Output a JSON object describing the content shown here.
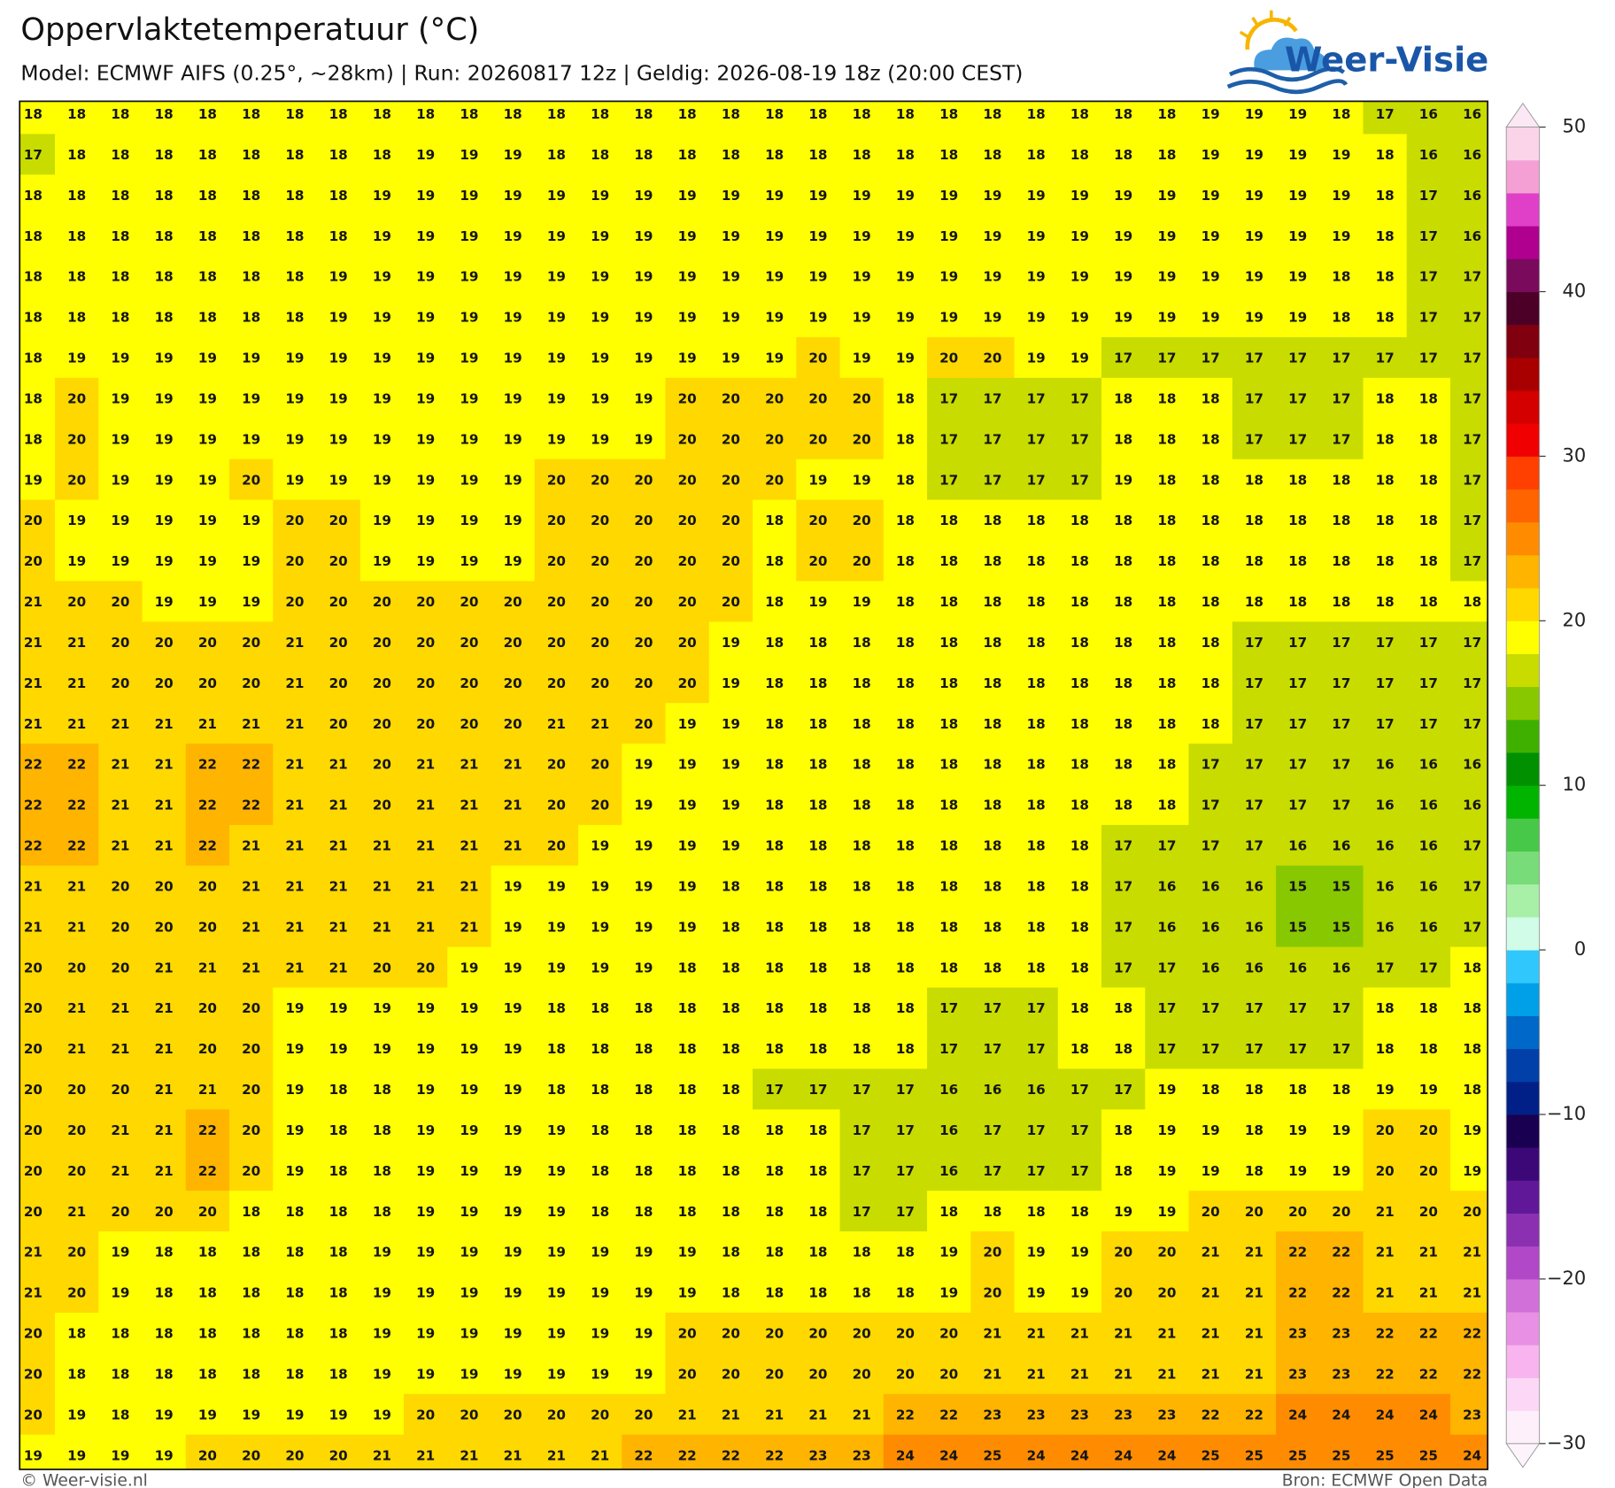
{
  "header": {
    "title": "Oppervlaktetemperatuur (°C)",
    "subtitle": "Model: ECMWF AIFS (0.25°, ~28km)  |  Run: 20260817 12z  |  Geldig: 2026-08-19 18z (20:00 CEST)"
  },
  "logo": {
    "text": "Weer-Visie"
  },
  "map": {
    "values": [
      [
        18,
        18,
        18,
        18,
        18,
        18,
        18,
        18,
        18,
        18,
        18,
        18,
        18,
        18,
        18,
        18,
        18,
        18,
        18,
        18,
        18,
        18,
        18,
        18,
        18,
        18,
        18,
        19,
        19,
        19,
        18,
        17,
        16,
        16
      ],
      [
        17,
        18,
        18,
        18,
        18,
        18,
        18,
        18,
        18,
        19,
        19,
        19,
        18,
        18,
        18,
        18,
        18,
        18,
        18,
        18,
        18,
        18,
        18,
        18,
        18,
        18,
        18,
        19,
        19,
        19,
        19,
        18,
        16,
        16
      ],
      [
        18,
        18,
        18,
        18,
        18,
        18,
        18,
        18,
        19,
        19,
        19,
        19,
        19,
        19,
        19,
        19,
        19,
        19,
        19,
        19,
        19,
        19,
        19,
        19,
        19,
        19,
        19,
        19,
        19,
        19,
        19,
        18,
        17,
        16
      ],
      [
        18,
        18,
        18,
        18,
        18,
        18,
        18,
        18,
        19,
        19,
        19,
        19,
        19,
        19,
        19,
        19,
        19,
        19,
        19,
        19,
        19,
        19,
        19,
        19,
        19,
        19,
        19,
        19,
        19,
        19,
        19,
        18,
        17,
        16
      ],
      [
        18,
        18,
        18,
        18,
        18,
        18,
        18,
        19,
        19,
        19,
        19,
        19,
        19,
        19,
        19,
        19,
        19,
        19,
        19,
        19,
        19,
        19,
        19,
        19,
        19,
        19,
        19,
        19,
        19,
        19,
        18,
        18,
        17,
        17
      ],
      [
        18,
        18,
        18,
        18,
        18,
        18,
        18,
        19,
        19,
        19,
        19,
        19,
        19,
        19,
        19,
        19,
        19,
        19,
        19,
        19,
        19,
        19,
        19,
        19,
        19,
        19,
        19,
        19,
        19,
        19,
        18,
        18,
        17,
        17
      ],
      [
        18,
        19,
        19,
        19,
        19,
        19,
        19,
        19,
        19,
        19,
        19,
        19,
        19,
        19,
        19,
        19,
        19,
        19,
        20,
        19,
        19,
        20,
        20,
        19,
        19,
        17,
        17,
        17,
        17,
        17,
        17,
        17,
        17,
        17
      ],
      [
        18,
        20,
        19,
        19,
        19,
        19,
        19,
        19,
        19,
        19,
        19,
        19,
        19,
        19,
        19,
        20,
        20,
        20,
        20,
        20,
        18,
        17,
        17,
        17,
        17,
        18,
        18,
        18,
        17,
        17,
        17,
        18,
        18,
        17
      ],
      [
        18,
        20,
        19,
        19,
        19,
        19,
        19,
        19,
        19,
        19,
        19,
        19,
        19,
        19,
        19,
        20,
        20,
        20,
        20,
        20,
        18,
        17,
        17,
        17,
        17,
        18,
        18,
        18,
        17,
        17,
        17,
        18,
        18,
        17
      ],
      [
        19,
        20,
        19,
        19,
        19,
        20,
        19,
        19,
        19,
        19,
        19,
        19,
        20,
        20,
        20,
        20,
        20,
        20,
        19,
        19,
        18,
        17,
        17,
        17,
        17,
        19,
        18,
        18,
        18,
        18,
        18,
        18,
        18,
        17
      ],
      [
        20,
        19,
        19,
        19,
        19,
        19,
        20,
        20,
        19,
        19,
        19,
        19,
        20,
        20,
        20,
        20,
        20,
        18,
        20,
        20,
        18,
        18,
        18,
        18,
        18,
        18,
        18,
        18,
        18,
        18,
        18,
        18,
        18,
        17
      ],
      [
        20,
        19,
        19,
        19,
        19,
        19,
        20,
        20,
        19,
        19,
        19,
        19,
        20,
        20,
        20,
        20,
        20,
        18,
        20,
        20,
        18,
        18,
        18,
        18,
        18,
        18,
        18,
        18,
        18,
        18,
        18,
        18,
        18,
        17
      ],
      [
        21,
        20,
        20,
        19,
        19,
        19,
        20,
        20,
        20,
        20,
        20,
        20,
        20,
        20,
        20,
        20,
        20,
        18,
        19,
        19,
        18,
        18,
        18,
        18,
        18,
        18,
        18,
        18,
        18,
        18,
        18,
        18,
        18,
        18
      ],
      [
        21,
        21,
        20,
        20,
        20,
        20,
        21,
        20,
        20,
        20,
        20,
        20,
        20,
        20,
        20,
        20,
        19,
        18,
        18,
        18,
        18,
        18,
        18,
        18,
        18,
        18,
        18,
        18,
        17,
        17,
        17,
        17,
        17,
        17
      ],
      [
        21,
        21,
        20,
        20,
        20,
        20,
        21,
        20,
        20,
        20,
        20,
        20,
        20,
        20,
        20,
        20,
        19,
        18,
        18,
        18,
        18,
        18,
        18,
        18,
        18,
        18,
        18,
        18,
        17,
        17,
        17,
        17,
        17,
        17
      ],
      [
        21,
        21,
        21,
        21,
        21,
        21,
        21,
        20,
        20,
        20,
        20,
        20,
        21,
        21,
        20,
        19,
        19,
        18,
        18,
        18,
        18,
        18,
        18,
        18,
        18,
        18,
        18,
        18,
        17,
        17,
        17,
        17,
        17,
        17
      ],
      [
        22,
        22,
        21,
        21,
        22,
        22,
        21,
        21,
        20,
        21,
        21,
        21,
        20,
        20,
        19,
        19,
        19,
        18,
        18,
        18,
        18,
        18,
        18,
        18,
        18,
        18,
        18,
        17,
        17,
        17,
        17,
        16,
        16,
        16
      ],
      [
        22,
        22,
        21,
        21,
        22,
        22,
        21,
        21,
        20,
        21,
        21,
        21,
        20,
        20,
        19,
        19,
        19,
        18,
        18,
        18,
        18,
        18,
        18,
        18,
        18,
        18,
        18,
        17,
        17,
        17,
        17,
        16,
        16,
        16
      ],
      [
        22,
        22,
        21,
        21,
        22,
        21,
        21,
        21,
        21,
        21,
        21,
        21,
        20,
        19,
        19,
        19,
        19,
        18,
        18,
        18,
        18,
        18,
        18,
        18,
        18,
        17,
        17,
        17,
        17,
        16,
        16,
        16,
        16,
        17
      ],
      [
        21,
        21,
        20,
        20,
        20,
        21,
        21,
        21,
        21,
        21,
        21,
        19,
        19,
        19,
        19,
        19,
        18,
        18,
        18,
        18,
        18,
        18,
        18,
        18,
        18,
        17,
        16,
        16,
        16,
        15,
        15,
        16,
        16,
        17
      ],
      [
        21,
        21,
        20,
        20,
        20,
        21,
        21,
        21,
        21,
        21,
        21,
        19,
        19,
        19,
        19,
        19,
        18,
        18,
        18,
        18,
        18,
        18,
        18,
        18,
        18,
        17,
        16,
        16,
        16,
        15,
        15,
        16,
        16,
        17
      ],
      [
        20,
        20,
        20,
        21,
        21,
        21,
        21,
        21,
        20,
        20,
        19,
        19,
        19,
        19,
        19,
        18,
        18,
        18,
        18,
        18,
        18,
        18,
        18,
        18,
        18,
        17,
        17,
        16,
        16,
        16,
        16,
        17,
        17,
        18
      ],
      [
        20,
        21,
        21,
        21,
        20,
        20,
        19,
        19,
        19,
        19,
        19,
        19,
        18,
        18,
        18,
        18,
        18,
        18,
        18,
        18,
        18,
        17,
        17,
        17,
        18,
        18,
        17,
        17,
        17,
        17,
        17,
        18,
        18,
        18
      ],
      [
        20,
        21,
        21,
        21,
        20,
        20,
        19,
        19,
        19,
        19,
        19,
        19,
        18,
        18,
        18,
        18,
        18,
        18,
        18,
        18,
        18,
        17,
        17,
        17,
        18,
        18,
        17,
        17,
        17,
        17,
        17,
        18,
        18,
        18
      ],
      [
        20,
        20,
        20,
        21,
        21,
        20,
        19,
        18,
        18,
        19,
        19,
        19,
        18,
        18,
        18,
        18,
        18,
        17,
        17,
        17,
        17,
        16,
        16,
        16,
        17,
        17,
        19,
        18,
        18,
        18,
        18,
        19,
        19,
        18
      ],
      [
        20,
        20,
        21,
        21,
        22,
        20,
        19,
        18,
        18,
        19,
        19,
        19,
        19,
        18,
        18,
        18,
        18,
        18,
        18,
        17,
        17,
        16,
        17,
        17,
        17,
        18,
        19,
        19,
        18,
        19,
        19,
        20,
        20,
        19
      ],
      [
        20,
        20,
        21,
        21,
        22,
        20,
        19,
        18,
        18,
        19,
        19,
        19,
        19,
        18,
        18,
        18,
        18,
        18,
        18,
        17,
        17,
        16,
        17,
        17,
        17,
        18,
        19,
        19,
        18,
        19,
        19,
        20,
        20,
        19
      ],
      [
        20,
        21,
        20,
        20,
        20,
        18,
        18,
        18,
        18,
        19,
        19,
        19,
        19,
        18,
        18,
        18,
        18,
        18,
        18,
        17,
        17,
        18,
        18,
        18,
        18,
        19,
        19,
        20,
        20,
        20,
        20,
        21,
        20,
        20
      ],
      [
        21,
        20,
        19,
        18,
        18,
        18,
        18,
        18,
        19,
        19,
        19,
        19,
        19,
        19,
        19,
        19,
        18,
        18,
        18,
        18,
        18,
        19,
        20,
        19,
        19,
        20,
        20,
        21,
        21,
        22,
        22,
        21,
        21,
        21
      ],
      [
        21,
        20,
        19,
        18,
        18,
        18,
        18,
        18,
        19,
        19,
        19,
        19,
        19,
        19,
        19,
        19,
        18,
        18,
        18,
        18,
        18,
        19,
        20,
        19,
        19,
        20,
        20,
        21,
        21,
        22,
        22,
        21,
        21,
        21
      ],
      [
        20,
        18,
        18,
        18,
        18,
        18,
        18,
        18,
        19,
        19,
        19,
        19,
        19,
        19,
        19,
        20,
        20,
        20,
        20,
        20,
        20,
        20,
        21,
        21,
        21,
        21,
        21,
        21,
        21,
        23,
        23,
        22,
        22,
        22
      ],
      [
        20,
        18,
        18,
        18,
        18,
        18,
        18,
        18,
        19,
        19,
        19,
        19,
        19,
        19,
        19,
        20,
        20,
        20,
        20,
        20,
        20,
        20,
        21,
        21,
        21,
        21,
        21,
        21,
        21,
        23,
        23,
        22,
        22,
        22
      ],
      [
        20,
        19,
        18,
        19,
        19,
        19,
        19,
        19,
        19,
        20,
        20,
        20,
        20,
        20,
        20,
        21,
        21,
        21,
        21,
        21,
        22,
        22,
        23,
        23,
        23,
        23,
        23,
        22,
        22,
        24,
        24,
        24,
        24,
        23
      ],
      [
        19,
        19,
        19,
        19,
        20,
        20,
        20,
        20,
        21,
        21,
        21,
        21,
        21,
        21,
        22,
        22,
        22,
        22,
        23,
        23,
        24,
        24,
        25,
        24,
        24,
        24,
        24,
        25,
        25,
        25,
        25,
        25,
        25,
        24
      ]
    ]
  },
  "colorbar": {
    "lim": [
      -30,
      50
    ],
    "ticks": [
      50,
      40,
      30,
      20,
      10,
      0,
      {
        "value": -10,
        "label": "−10"
      },
      {
        "value": -20,
        "label": "−20"
      },
      {
        "value": -30,
        "label": "−30"
      }
    ],
    "colors": [
      "#fdf0fa",
      "#fcd8f6",
      "#f8b4ee",
      "#e890e4",
      "#d070d8",
      "#b048c8",
      "#8a30b0",
      "#601898",
      "#3c0878",
      "#1a0050",
      "#002088",
      "#0040a8",
      "#0068c8",
      "#00a0e8",
      "#30c8fc",
      "#d0fce8",
      "#a8f0a8",
      "#78dc78",
      "#48c848",
      "#00b400",
      "#009000",
      "#40b000",
      "#88c800",
      "#c8dc00",
      "#ffff00",
      "#ffd800",
      "#ffb400",
      "#ff8c00",
      "#ff6400",
      "#ff4000",
      "#f00000",
      "#d40000",
      "#a80000",
      "#800010",
      "#4c0028",
      "#7a0a5c",
      "#b00090",
      "#e040c8",
      "#f4a0d4",
      "#fcd4ea"
    ]
  },
  "footer": {
    "copyright": "© Weer-visie.nl",
    "source": "Bron: ECMWF Open Data"
  }
}
